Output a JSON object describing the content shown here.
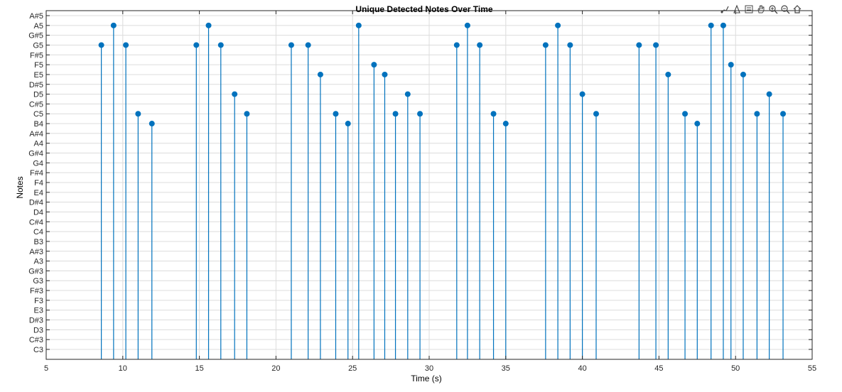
{
  "chart_data": {
    "type": "stem",
    "title": "Unique Detected Notes Over Time",
    "xlabel": "Time (s)",
    "ylabel": "Notes",
    "xlim": [
      5,
      55
    ],
    "x_ticks": [
      5,
      10,
      15,
      20,
      25,
      30,
      35,
      40,
      45,
      50,
      55
    ],
    "y_categories": [
      "C3",
      "C#3",
      "D3",
      "D#3",
      "E3",
      "F3",
      "F#3",
      "G3",
      "G#3",
      "A3",
      "A#3",
      "B3",
      "C4",
      "C#4",
      "D4",
      "D#4",
      "E4",
      "F4",
      "F#4",
      "G4",
      "G#4",
      "A4",
      "A#4",
      "B4",
      "C5",
      "C#5",
      "D5",
      "D#5",
      "E5",
      "F5",
      "F#5",
      "G5",
      "G#5",
      "A5",
      "A#5"
    ],
    "grid": true,
    "color": "#0072BD",
    "points": [
      {
        "x": 8.6,
        "note": "G5"
      },
      {
        "x": 9.4,
        "note": "A5"
      },
      {
        "x": 10.2,
        "note": "G5"
      },
      {
        "x": 11.0,
        "note": "C5"
      },
      {
        "x": 11.9,
        "note": "B4"
      },
      {
        "x": 14.8,
        "note": "G5"
      },
      {
        "x": 15.6,
        "note": "A5"
      },
      {
        "x": 16.4,
        "note": "G5"
      },
      {
        "x": 17.3,
        "note": "D5"
      },
      {
        "x": 18.1,
        "note": "C5"
      },
      {
        "x": 21.0,
        "note": "G5"
      },
      {
        "x": 22.1,
        "note": "G5"
      },
      {
        "x": 22.9,
        "note": "E5"
      },
      {
        "x": 23.9,
        "note": "C5"
      },
      {
        "x": 24.7,
        "note": "B4"
      },
      {
        "x": 25.4,
        "note": "A5"
      },
      {
        "x": 26.4,
        "note": "F5"
      },
      {
        "x": 27.1,
        "note": "E5"
      },
      {
        "x": 27.8,
        "note": "C5"
      },
      {
        "x": 28.6,
        "note": "D5"
      },
      {
        "x": 29.4,
        "note": "C5"
      },
      {
        "x": 31.8,
        "note": "G5"
      },
      {
        "x": 32.5,
        "note": "A5"
      },
      {
        "x": 33.3,
        "note": "G5"
      },
      {
        "x": 34.2,
        "note": "C5"
      },
      {
        "x": 35.0,
        "note": "B4"
      },
      {
        "x": 37.6,
        "note": "G5"
      },
      {
        "x": 38.4,
        "note": "A5"
      },
      {
        "x": 39.2,
        "note": "G5"
      },
      {
        "x": 40.0,
        "note": "D5"
      },
      {
        "x": 40.9,
        "note": "C5"
      },
      {
        "x": 43.7,
        "note": "G5"
      },
      {
        "x": 44.8,
        "note": "G5"
      },
      {
        "x": 45.6,
        "note": "E5"
      },
      {
        "x": 46.7,
        "note": "C5"
      },
      {
        "x": 47.5,
        "note": "B4"
      },
      {
        "x": 48.4,
        "note": "A5"
      },
      {
        "x": 49.2,
        "note": "A5"
      },
      {
        "x": 49.7,
        "note": "F5"
      },
      {
        "x": 50.5,
        "note": "E5"
      },
      {
        "x": 51.4,
        "note": "C5"
      },
      {
        "x": 52.2,
        "note": "D5"
      },
      {
        "x": 53.1,
        "note": "C5"
      }
    ]
  },
  "toolbar": {
    "icons": [
      "brush-icon",
      "data-tip-icon",
      "legend-icon",
      "pan-hand-icon",
      "zoom-in-icon",
      "zoom-out-icon",
      "home-icon"
    ]
  }
}
